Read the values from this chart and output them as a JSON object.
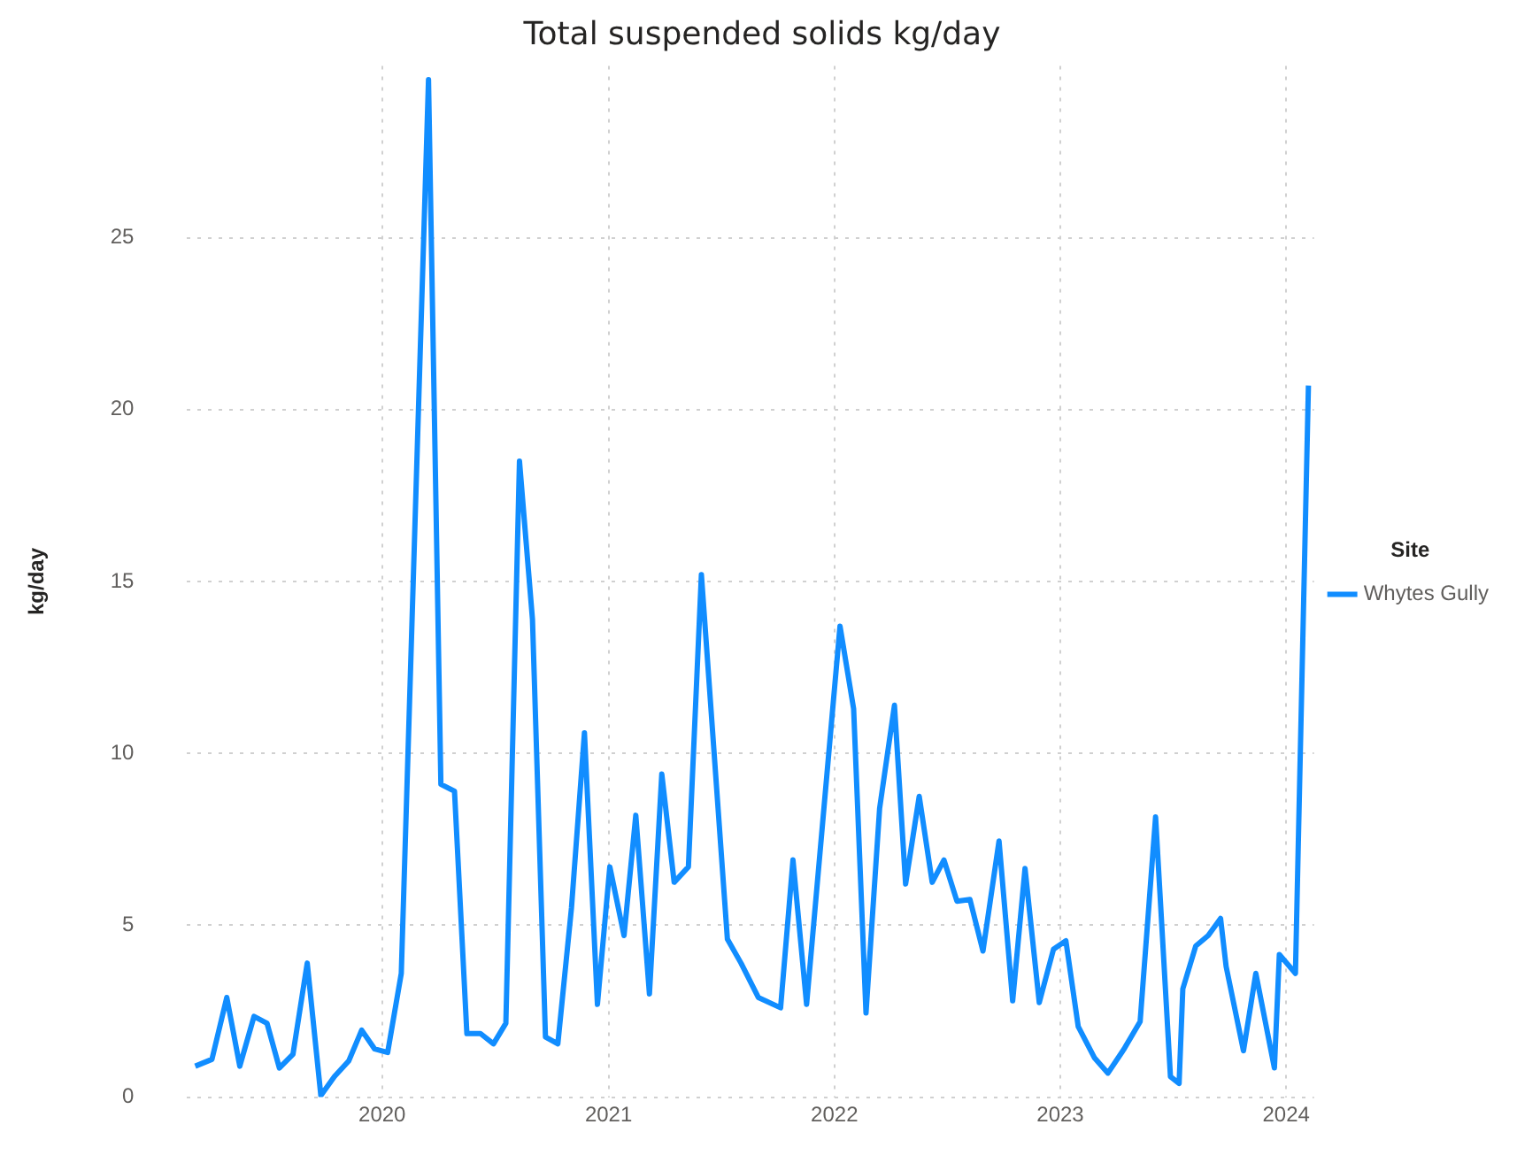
{
  "chart_data": {
    "type": "line",
    "title": "Total suspended solids kg/day",
    "ylabel": "kg/day",
    "legend_title": "Site",
    "legend": "right",
    "grid": true,
    "marker": "none",
    "line_style": "solid",
    "xlim": [
      "2019-02-20",
      "2024-02-15"
    ],
    "xticks": [
      "2020",
      "2021",
      "2022",
      "2023",
      "2024"
    ],
    "ylim": [
      0,
      30
    ],
    "yticks": [
      0,
      5,
      10,
      15,
      20,
      25
    ],
    "x": [
      "2019-03-05",
      "2019-04-01",
      "2019-04-25",
      "2019-05-16",
      "2019-06-08",
      "2019-06-29",
      "2019-07-19",
      "2019-08-10",
      "2019-09-02",
      "2019-09-24",
      "2019-10-16",
      "2019-11-08",
      "2019-11-29",
      "2019-12-20",
      "2020-01-10",
      "2020-02-01",
      "2020-03-16",
      "2020-04-05",
      "2020-04-27",
      "2020-05-17",
      "2020-06-08",
      "2020-06-29",
      "2020-07-19",
      "2020-08-10",
      "2020-08-31",
      "2020-09-21",
      "2020-10-11",
      "2020-11-02",
      "2020-11-23",
      "2020-12-14",
      "2021-01-03",
      "2021-01-26",
      "2021-02-14",
      "2021-03-08",
      "2021-03-28",
      "2021-04-17",
      "2021-05-10",
      "2021-05-31",
      "2021-07-12",
      "2021-08-03",
      "2021-08-31",
      "2021-10-06",
      "2021-10-26",
      "2021-11-17",
      "2022-01-10",
      "2022-02-01",
      "2022-02-21",
      "2022-03-15",
      "2022-04-08",
      "2022-04-26",
      "2022-05-18",
      "2022-06-08",
      "2022-06-27",
      "2022-07-18",
      "2022-08-08",
      "2022-08-29",
      "2022-09-24",
      "2022-10-16",
      "2022-11-05",
      "2022-11-28",
      "2022-12-21",
      "2023-01-10",
      "2023-01-30",
      "2023-02-25",
      "2023-03-19",
      "2023-04-14",
      "2023-05-10",
      "2023-06-04",
      "2023-06-28",
      "2023-07-12",
      "2023-07-18",
      "2023-08-08",
      "2023-08-28",
      "2023-09-17",
      "2023-09-26",
      "2023-10-24",
      "2023-11-13",
      "2023-12-13",
      "2023-12-21",
      "2024-01-16",
      "2024-02-06"
    ],
    "series": [
      {
        "name": "Whytes Gully",
        "color": "#118dff",
        "values": [
          0.9,
          1.1,
          2.9,
          0.9,
          2.35,
          2.15,
          0.85,
          1.25,
          3.9,
          0.05,
          0.6,
          1.05,
          1.95,
          1.4,
          1.3,
          3.6,
          29.6,
          9.1,
          8.9,
          1.85,
          1.85,
          1.55,
          2.15,
          18.5,
          13.9,
          1.75,
          1.55,
          5.5,
          10.6,
          2.7,
          6.7,
          4.7,
          8.2,
          3.0,
          9.4,
          6.25,
          6.7,
          15.2,
          4.6,
          3.9,
          2.9,
          2.6,
          6.9,
          2.7,
          13.7,
          11.3,
          2.45,
          8.4,
          11.4,
          6.2,
          8.75,
          6.25,
          6.9,
          5.7,
          5.75,
          4.25,
          7.45,
          2.8,
          6.65,
          2.75,
          4.3,
          4.55,
          2.05,
          1.15,
          0.7,
          1.4,
          2.2,
          8.15,
          0.6,
          0.4,
          3.15,
          4.4,
          4.7,
          5.2,
          3.8,
          1.35,
          3.6,
          0.85,
          4.15,
          3.6,
          20.7
        ]
      }
    ]
  }
}
